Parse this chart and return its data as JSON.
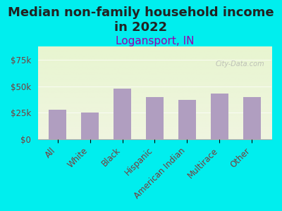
{
  "title": "Median non-family household income\nin 2022",
  "subtitle": "Logansport, IN",
  "categories": [
    "All",
    "White",
    "Black",
    "Hispanic",
    "American Indian",
    "Multirace",
    "Other"
  ],
  "values": [
    28000,
    25000,
    48000,
    40000,
    37000,
    43000,
    40000
  ],
  "bar_color": "#b09ec0",
  "background_color": "#00eeee",
  "plot_bg_top": "#e8f5d0",
  "plot_bg_bottom": "#f0f5e0",
  "title_color": "#222222",
  "subtitle_color": "#9900aa",
  "tick_label_color": "#7a3a3a",
  "axis_label_color": "#7a3a3a",
  "watermark": "City-Data.com",
  "ylim": [
    0,
    87500
  ],
  "yticks": [
    0,
    25000,
    50000,
    75000
  ],
  "ytick_labels": [
    "$0",
    "$25k",
    "$50k",
    "$75k"
  ],
  "title_fontsize": 13,
  "subtitle_fontsize": 11,
  "tick_fontsize": 8.5
}
